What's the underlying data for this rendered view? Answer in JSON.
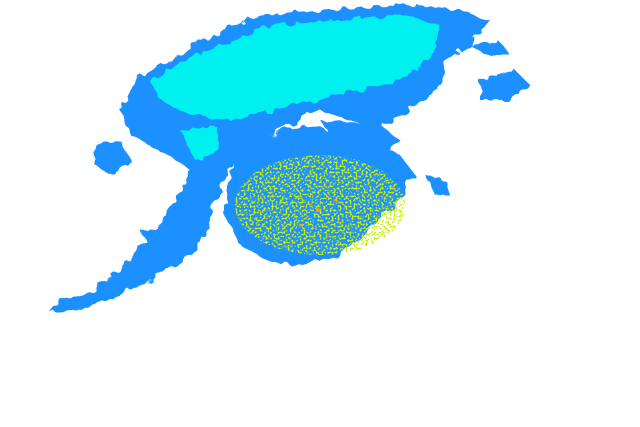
{
  "map": {
    "type": "weather-radar-reflectivity",
    "background": "#ffffff",
    "colors": {
      "light": "#1e90ff",
      "moderate": "#00c8ff",
      "strong": "#00f0f0",
      "heavy": "#c8f000",
      "intense": "#f0f000",
      "peak": "#ff9900"
    }
  }
}
